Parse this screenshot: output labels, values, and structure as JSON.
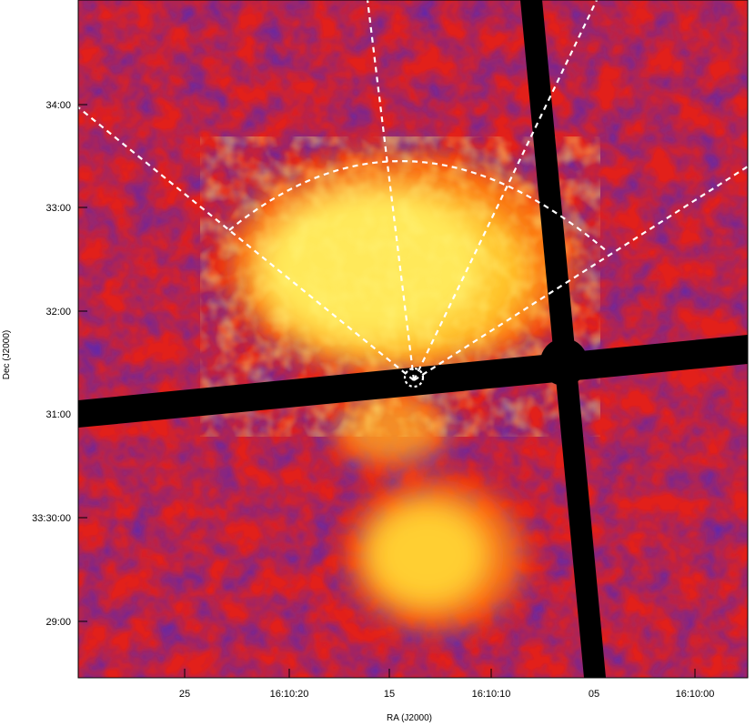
{
  "figure": {
    "colormap": [
      "#000000",
      "#3a2ad8",
      "#e21a10",
      "#ff8800",
      "#ffe03a",
      "#ffffff"
    ],
    "overlay_color": "#ffffff",
    "streak_color": "#000000"
  },
  "axes": {
    "xlabel": "RA (J2000)",
    "ylabel": "Dec (J2000)",
    "x_tick_labels": [
      "25",
      "16:10:20",
      "15",
      "16:10:10",
      "05",
      "16:10:00"
    ],
    "y_tick_labels": [
      "34:00",
      "33:00",
      "32:00",
      "31:00",
      "33:30:00",
      "29:00"
    ]
  }
}
